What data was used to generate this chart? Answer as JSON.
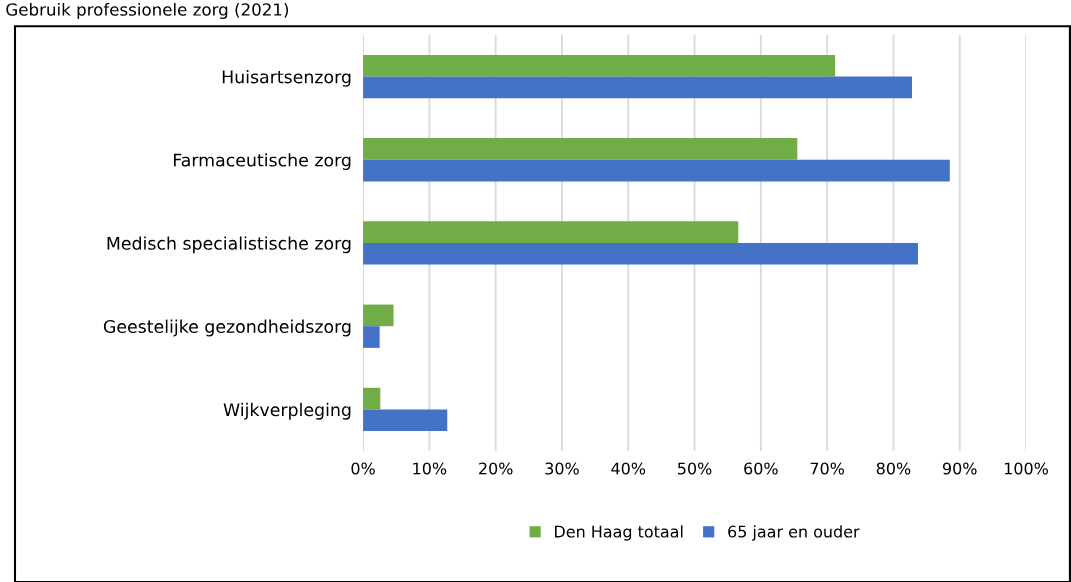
{
  "chart_data": {
    "type": "bar",
    "orientation": "horizontal",
    "title": "Gebruik professionele zorg (2021)",
    "categories": [
      "Huisartsenzorg",
      "Farmaceutische zorg",
      "Medisch specialistische zorg",
      "Geestelijke gezondheidszorg",
      "Wijkverpleging"
    ],
    "series": [
      {
        "name": "Den Haag totaal",
        "color": "#70ad47",
        "values": [
          71.2,
          65.5,
          56.6,
          4.6,
          2.6
        ]
      },
      {
        "name": "65 jaar en ouder",
        "color": "#4472c4",
        "values": [
          82.8,
          88.5,
          83.7,
          2.5,
          12.7
        ]
      }
    ],
    "xlim": [
      0,
      100
    ],
    "xticks": [
      {
        "value": 0,
        "label": "0%"
      },
      {
        "value": 10,
        "label": "10%"
      },
      {
        "value": 20,
        "label": "20%"
      },
      {
        "value": 30,
        "label": "30%"
      },
      {
        "value": 40,
        "label": "40%"
      },
      {
        "value": 50,
        "label": "50%"
      },
      {
        "value": 60,
        "label": "60%"
      },
      {
        "value": 70,
        "label": "70%"
      },
      {
        "value": 80,
        "label": "80%"
      },
      {
        "value": 90,
        "label": "90%"
      },
      {
        "value": 100,
        "label": "100%"
      }
    ],
    "grid": "x",
    "legend": "bottom"
  }
}
